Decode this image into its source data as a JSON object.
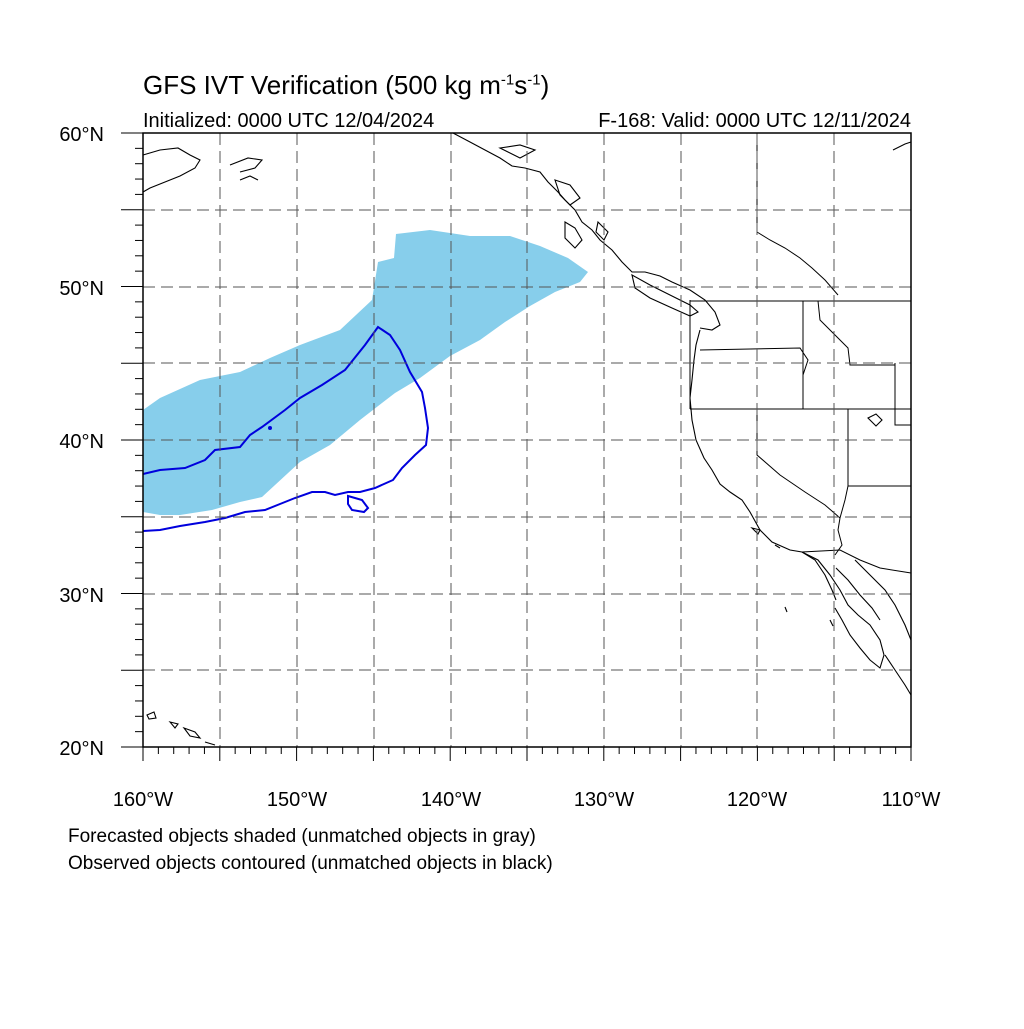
{
  "title": {
    "main": "GFS IVT Verification (500 kg m",
    "exp1": "-1",
    "mid": "s",
    "exp2": "-1",
    "close": ")"
  },
  "initialized": "Initialized: 0000 UTC 12/04/2024",
  "valid": "F-168: Valid: 0000 UTC 12/11/2024",
  "lat_labels": [
    "60°N",
    "50°N",
    "40°N",
    "30°N",
    "20°N"
  ],
  "lon_labels": [
    "160°W",
    "150°W",
    "140°W",
    "130°W",
    "120°W",
    "110°W"
  ],
  "notes": [
    "Forecasted objects shaded (unmatched objects in gray)",
    "Observed objects contoured (unmatched objects in black)"
  ],
  "colors": {
    "forecast_fill": "#87ceeb",
    "observed_contour": "#0000dd",
    "coast": "#000000",
    "grid": "#555555"
  },
  "map": {
    "lon_range": [
      -160,
      -110
    ],
    "lat_range": [
      20,
      60
    ],
    "grid_step_deg": 5,
    "grid_style": "dashed"
  }
}
